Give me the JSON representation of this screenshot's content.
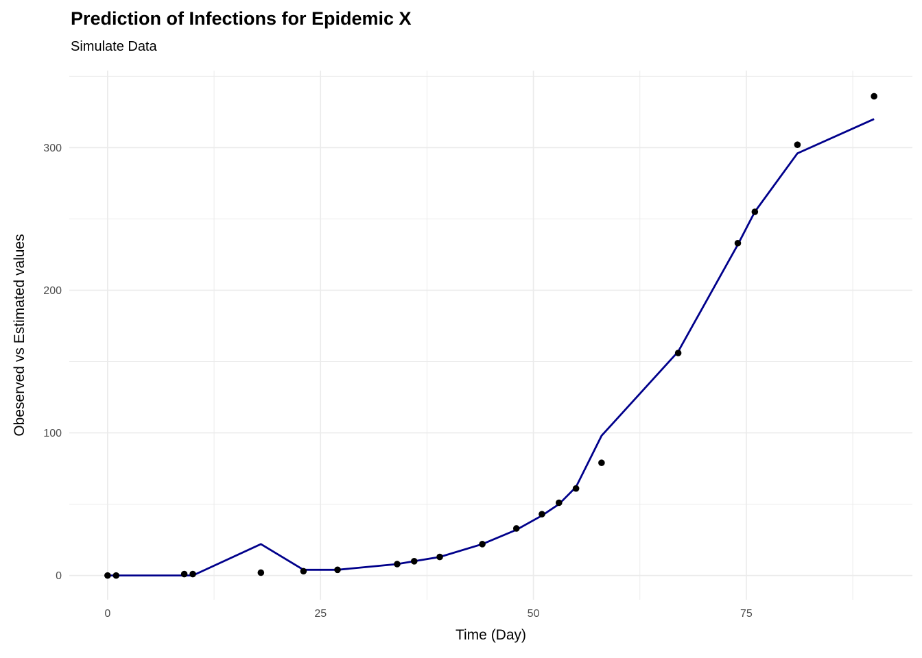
{
  "header": {
    "title": "Prediction of Infections for Epidemic X",
    "subtitle": "Simulate Data"
  },
  "chart_data": {
    "type": "line",
    "title": "Prediction of Infections for Epidemic X",
    "subtitle": "Simulate Data",
    "xlabel": "Time (Day)",
    "ylabel": "Obeserved vs Estimated values",
    "x": [
      0,
      1,
      9,
      10,
      18,
      23,
      27,
      34,
      36,
      39,
      44,
      48,
      51,
      53,
      55,
      58,
      67,
      74,
      76,
      81,
      90
    ],
    "series": [
      {
        "name": "Observed",
        "style": "points",
        "color": "#000000",
        "values": [
          0,
          0,
          1,
          1,
          2,
          3,
          4,
          8,
          10,
          13,
          22,
          33,
          43,
          51,
          61,
          79,
          156,
          233,
          255,
          302,
          336
        ]
      },
      {
        "name": "Estimated",
        "style": "line",
        "color": "#00008B",
        "values": [
          0,
          0,
          0,
          0,
          22,
          4,
          4,
          8,
          10,
          13,
          22,
          32,
          42,
          50,
          62,
          98,
          157,
          232,
          255,
          296,
          320
        ]
      }
    ],
    "x_ticks": [
      0,
      25,
      50,
      75
    ],
    "x_minor_ticks": [
      12.5,
      37.5,
      62.5,
      87.5
    ],
    "y_ticks": [
      0,
      100,
      200,
      300
    ],
    "y_minor_ticks": [
      50,
      150,
      250,
      350
    ],
    "xlim": [
      -4.5,
      94.5
    ],
    "ylim": [
      -17,
      354
    ],
    "grid": "on",
    "legend_position": "none",
    "colors": {
      "background": "#FFFFFF",
      "grid": "#EBEBEB",
      "tick_label": "#4D4D4D",
      "axis_title": "#000000",
      "point": "#000000",
      "line": "#00008B"
    }
  }
}
